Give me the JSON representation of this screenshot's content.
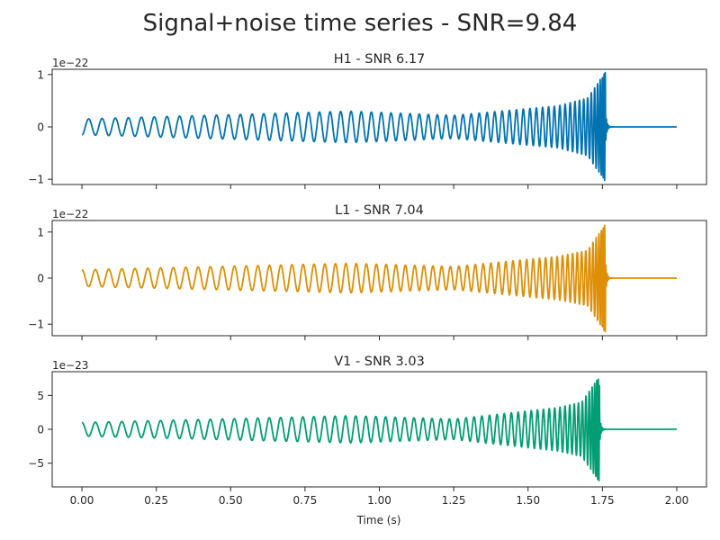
{
  "figure": {
    "title": "Signal+noise time series - SNR=9.84",
    "xlabel": "Time (s)"
  },
  "chart_data": [
    {
      "type": "line",
      "title": "H1 - SNR 6.17",
      "offset_label": "1e−22",
      "color": "#0173b2",
      "xlim": [
        0,
        2
      ],
      "ylim": [
        -1.1,
        1.1
      ],
      "yticks": [
        -1,
        0,
        1
      ],
      "ytick_labels": [
        "−1",
        "0",
        "1"
      ],
      "xticks": [
        0,
        0.25,
        0.5,
        0.75,
        1.0,
        1.25,
        1.5,
        1.75,
        2.0
      ],
      "series": [
        {
          "x_range": [
            0,
            2.0
          ],
          "merger_time": 1.76,
          "frequency_start_hz": 22,
          "frequency_end_hz": 250,
          "amplitude_envelope": [
            [
              0.0,
              0.15
            ],
            [
              0.9,
              0.3
            ],
            [
              1.25,
              0.22
            ],
            [
              1.6,
              0.4
            ],
            [
              1.7,
              0.55
            ],
            [
              1.76,
              1.05
            ]
          ],
          "post_merger_value": 0,
          "start_value": -0.15
        }
      ]
    },
    {
      "type": "line",
      "title": "L1 - SNR 7.04",
      "offset_label": "1e−22",
      "color": "#de8f05",
      "xlim": [
        0,
        2
      ],
      "ylim": [
        -1.25,
        1.25
      ],
      "yticks": [
        -1,
        0,
        1
      ],
      "ytick_labels": [
        "−1",
        "0",
        "1"
      ],
      "xticks": [
        0,
        0.25,
        0.5,
        0.75,
        1.0,
        1.25,
        1.5,
        1.75,
        2.0
      ],
      "series": [
        {
          "x_range": [
            0,
            2.0
          ],
          "merger_time": 1.76,
          "frequency_start_hz": 22,
          "frequency_end_hz": 250,
          "amplitude_envelope": [
            [
              0.0,
              0.18
            ],
            [
              0.9,
              0.32
            ],
            [
              1.25,
              0.25
            ],
            [
              1.6,
              0.47
            ],
            [
              1.7,
              0.6
            ],
            [
              1.76,
              1.18
            ]
          ],
          "post_merger_value": 0,
          "start_value": 0.18
        }
      ]
    },
    {
      "type": "line",
      "title": "V1 - SNR 3.03",
      "offset_label": "1e−23",
      "color": "#029e73",
      "xlim": [
        0,
        2
      ],
      "ylim": [
        -8.5,
        8.5
      ],
      "yticks": [
        -5,
        0,
        5
      ],
      "ytick_labels": [
        "−5",
        "0",
        "5"
      ],
      "xticks": [
        0,
        0.25,
        0.5,
        0.75,
        1.0,
        1.25,
        1.5,
        1.75,
        2.0
      ],
      "xtick_labels": [
        "0.00",
        "0.25",
        "0.50",
        "0.75",
        "1.00",
        "1.25",
        "1.50",
        "1.75",
        "2.00"
      ],
      "series": [
        {
          "x_range": [
            0,
            2.0
          ],
          "merger_time": 1.74,
          "frequency_start_hz": 22,
          "frequency_end_hz": 250,
          "amplitude_envelope": [
            [
              0.0,
              1.0
            ],
            [
              0.9,
              2.0
            ],
            [
              1.25,
              1.5
            ],
            [
              1.6,
              3.2
            ],
            [
              1.68,
              4.0
            ],
            [
              1.74,
              7.8
            ]
          ],
          "post_merger_value": 0,
          "start_value": 1.0
        }
      ]
    }
  ]
}
